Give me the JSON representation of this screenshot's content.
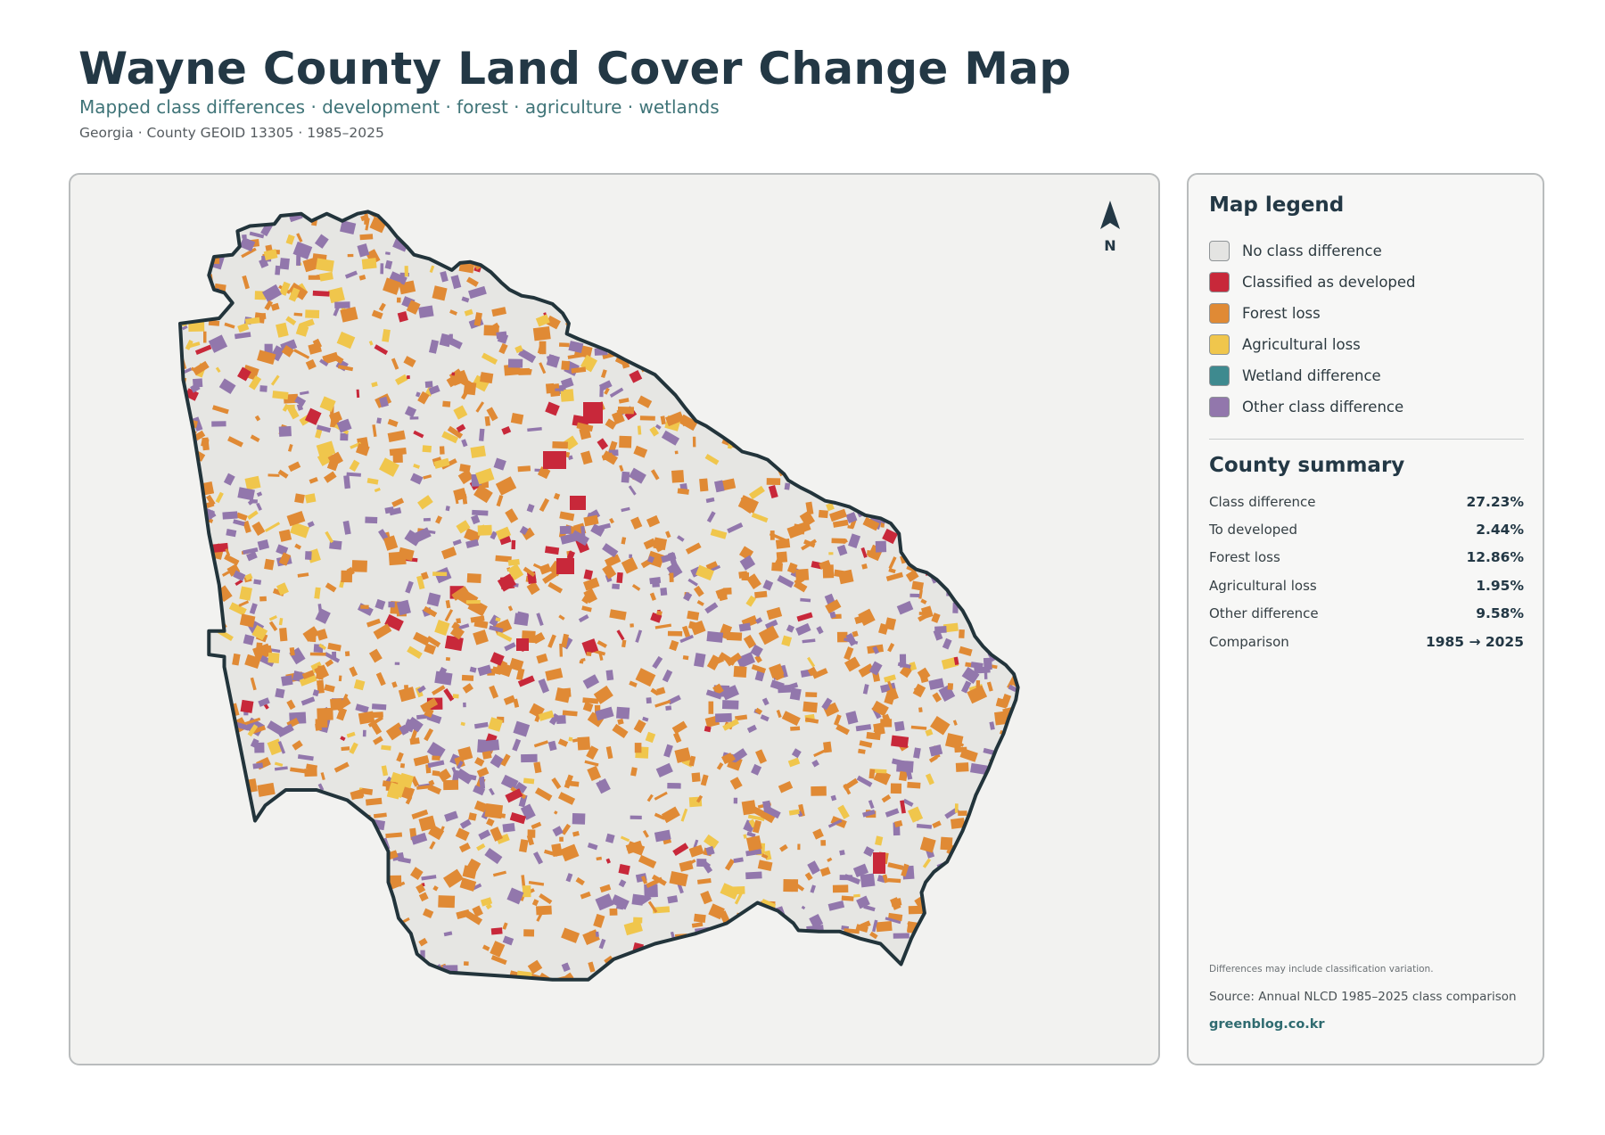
{
  "header": {
    "title": "Wayne County Land Cover Change Map",
    "subtitle": "Mapped class differences · development · forest · agriculture · wetlands",
    "meta": "Georgia · County GEOID 13305 · 1985–2025"
  },
  "map": {
    "north_label": "N",
    "outline_color": "#22343b",
    "background_color": "#e6e6e3"
  },
  "legend": {
    "title": "Map legend",
    "items": [
      {
        "label": "No class difference",
        "color": "#e4e4e2"
      },
      {
        "label": "Classified as developed",
        "color": "#c8283a"
      },
      {
        "label": "Forest loss",
        "color": "#e08a35"
      },
      {
        "label": "Agricultural loss",
        "color": "#f0c64c"
      },
      {
        "label": "Wetland difference",
        "color": "#3e8a8f"
      },
      {
        "label": "Other class difference",
        "color": "#9277ac"
      }
    ]
  },
  "summary": {
    "title": "County summary",
    "rows": [
      {
        "label": "Class difference",
        "value": "27.23%"
      },
      {
        "label": "To developed",
        "value": "2.44%"
      },
      {
        "label": "Forest loss",
        "value": "12.86%"
      },
      {
        "label": "Agricultural loss",
        "value": "1.95%"
      },
      {
        "label": "Other difference",
        "value": "9.58%"
      },
      {
        "label": "Comparison",
        "value": "1985 → 2025"
      }
    ]
  },
  "footer": {
    "note": "Differences may include classification variation.",
    "source": "Source: Annual NLCD 1985–2025 class comparison",
    "site": "greenblog.co.kr"
  }
}
